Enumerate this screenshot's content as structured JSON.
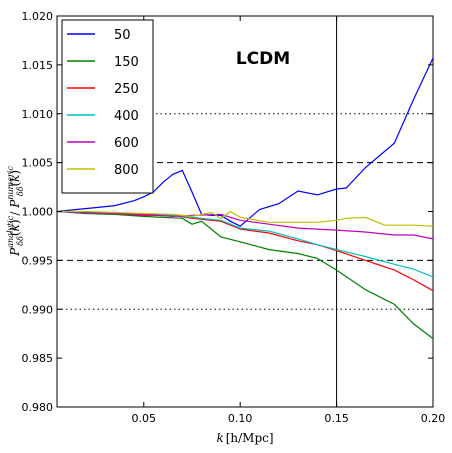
{
  "chart_data": {
    "type": "line",
    "annotation": "LCDM",
    "xlabel": "k [h/Mpc]",
    "ylabel": "P^analytic_δδ(k) / P^numeric_δδ(k)",
    "xlim": [
      0.005,
      0.2
    ],
    "ylim": [
      0.98,
      1.02
    ],
    "xticks": [
      0.05,
      0.1,
      0.15,
      0.2
    ],
    "xtick_labels": [
      "0.05",
      "0.10",
      "0.15",
      "0.20"
    ],
    "yticks": [
      0.98,
      0.985,
      0.99,
      0.995,
      1.0,
      1.005,
      1.01,
      1.015,
      1.02
    ],
    "ytick_labels": [
      "0.980",
      "0.985",
      "0.990",
      "0.995",
      "1.000",
      "1.005",
      "1.010",
      "1.015",
      "1.020"
    ],
    "legend_position": "top-left",
    "reference_lines": [
      {
        "orientation": "horizontal",
        "value": 1.005,
        "style": "dashed"
      },
      {
        "orientation": "horizontal",
        "value": 0.995,
        "style": "dashed"
      },
      {
        "orientation": "horizontal",
        "value": 1.01,
        "style": "dotted"
      },
      {
        "orientation": "horizontal",
        "value": 0.99,
        "style": "dotted"
      },
      {
        "orientation": "vertical",
        "value": 0.15,
        "style": "solid"
      }
    ],
    "series": [
      {
        "name": "50",
        "color": "#0000ff",
        "x": [
          0.005,
          0.015,
          0.025,
          0.035,
          0.045,
          0.05,
          0.055,
          0.06,
          0.065,
          0.07,
          0.075,
          0.08,
          0.085,
          0.09,
          0.095,
          0.1,
          0.11,
          0.12,
          0.13,
          0.14,
          0.15,
          0.155,
          0.165,
          0.18,
          0.19,
          0.2
        ],
        "y": [
          1.0,
          1.0002,
          1.0004,
          1.0006,
          1.0011,
          1.0015,
          1.002,
          1.003,
          1.0038,
          1.0042,
          1.002,
          0.9997,
          0.9996,
          0.9996,
          0.999,
          0.9985,
          1.0002,
          1.0008,
          1.0021,
          1.0017,
          1.0023,
          1.0024,
          1.0045,
          1.007,
          1.0115,
          1.0157
        ]
      },
      {
        "name": "150",
        "color": "#008000",
        "x": [
          0.005,
          0.02,
          0.035,
          0.05,
          0.06,
          0.07,
          0.075,
          0.08,
          0.09,
          0.1,
          0.115,
          0.13,
          0.14,
          0.15,
          0.165,
          0.18,
          0.19,
          0.2
        ],
        "y": [
          1.0,
          0.9998,
          0.9997,
          0.9995,
          0.9994,
          0.9993,
          0.9987,
          0.999,
          0.9974,
          0.9969,
          0.9961,
          0.9957,
          0.9952,
          0.994,
          0.992,
          0.9905,
          0.9885,
          0.987
        ]
      },
      {
        "name": "250",
        "color": "#ff0000",
        "x": [
          0.005,
          0.02,
          0.035,
          0.05,
          0.065,
          0.075,
          0.09,
          0.1,
          0.115,
          0.13,
          0.14,
          0.15,
          0.165,
          0.18,
          0.19,
          0.2
        ],
        "y": [
          1.0,
          0.9999,
          0.9998,
          0.9996,
          0.9996,
          0.9993,
          0.999,
          0.9982,
          0.9978,
          0.997,
          0.9966,
          0.996,
          0.995,
          0.994,
          0.993,
          0.9919
        ]
      },
      {
        "name": "400",
        "color": "#00bfbf",
        "x": [
          0.005,
          0.02,
          0.035,
          0.05,
          0.065,
          0.075,
          0.09,
          0.1,
          0.115,
          0.13,
          0.14,
          0.15,
          0.165,
          0.18,
          0.19,
          0.2
        ],
        "y": [
          1.0,
          0.9999,
          0.9998,
          0.9997,
          0.9996,
          0.9994,
          0.9991,
          0.9983,
          0.998,
          0.9972,
          0.9966,
          0.9961,
          0.9954,
          0.9946,
          0.9941,
          0.9933
        ]
      },
      {
        "name": "600",
        "color": "#bf00bf",
        "x": [
          0.005,
          0.02,
          0.035,
          0.05,
          0.065,
          0.075,
          0.09,
          0.1,
          0.115,
          0.13,
          0.14,
          0.15,
          0.165,
          0.18,
          0.19,
          0.2
        ],
        "y": [
          1.0,
          0.9999,
          0.9998,
          0.9997,
          0.9995,
          0.9996,
          0.9997,
          0.9991,
          0.9987,
          0.9983,
          0.9982,
          0.9981,
          0.9979,
          0.9976,
          0.9976,
          0.9972
        ]
      },
      {
        "name": "800",
        "color": "#bfbf00",
        "x": [
          0.005,
          0.02,
          0.035,
          0.05,
          0.065,
          0.075,
          0.085,
          0.09,
          0.095,
          0.1,
          0.115,
          0.13,
          0.14,
          0.15,
          0.155,
          0.165,
          0.175,
          0.19,
          0.2
        ],
        "y": [
          1.0,
          1.0,
          0.9999,
          0.9998,
          0.9997,
          0.9995,
          0.9999,
          0.9993,
          1.0,
          0.9994,
          0.9989,
          0.9989,
          0.9989,
          0.9991,
          0.9993,
          0.9994,
          0.9986,
          0.9986,
          0.9985
        ]
      }
    ]
  }
}
